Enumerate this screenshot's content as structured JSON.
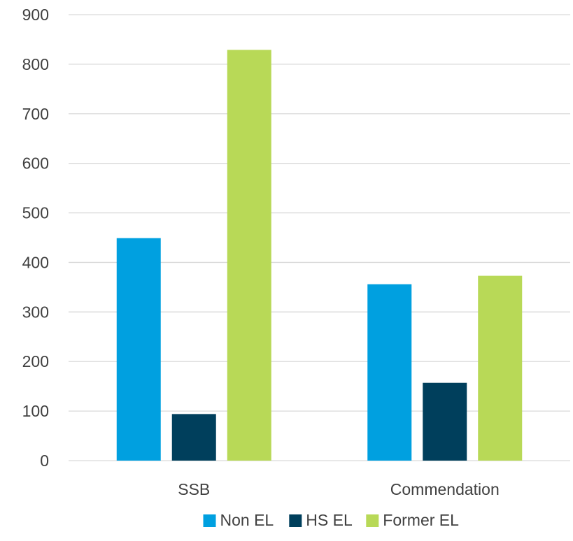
{
  "chart_data": {
    "type": "bar",
    "categories": [
      "SSB",
      "Commendation"
    ],
    "series": [
      {
        "name": "Non EL",
        "values": [
          449,
          356
        ],
        "color": "#00A0E0"
      },
      {
        "name": "HS EL",
        "values": [
          94,
          157
        ],
        "color": "#003F5C"
      },
      {
        "name": "Former EL",
        "values": [
          829,
          373
        ],
        "color": "#B8D957"
      }
    ],
    "yticks": [
      "0",
      "100",
      "200",
      "300",
      "400",
      "500",
      "600",
      "700",
      "800",
      "900"
    ],
    "ylim": [
      0,
      900
    ],
    "grid": true,
    "legend_position": "bottom",
    "title": "",
    "xlabel": "",
    "ylabel": ""
  }
}
